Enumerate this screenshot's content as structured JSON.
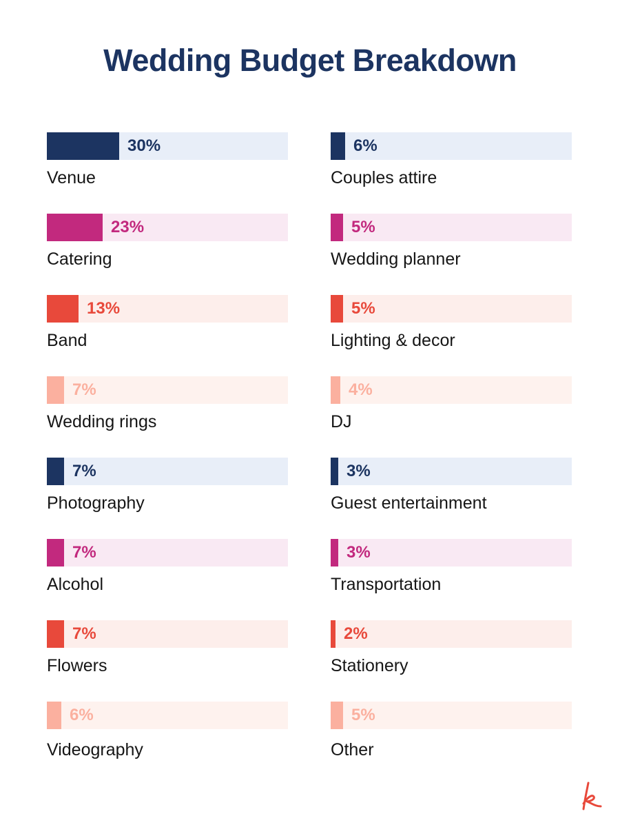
{
  "title": "Wedding Budget Breakdown",
  "colors": {
    "navy": "#1c3461",
    "navy_track": "#e8eef8",
    "magenta": "#c2297e",
    "magenta_track": "#f9e9f3",
    "red": "#e8493b",
    "red_track": "#fdeeeb",
    "peach": "#fbb09f",
    "peach_track": "#fef2ee",
    "logo": "#e8493b"
  },
  "chart_data": {
    "type": "bar",
    "orientation": "horizontal",
    "xlim": [
      0,
      100
    ],
    "unit": "%",
    "categories": [
      "Venue",
      "Catering",
      "Band",
      "Wedding rings",
      "Photography",
      "Alcohol",
      "Flowers",
      "Videography",
      "Couples attire",
      "Wedding planner",
      "Lighting & decor",
      "DJ",
      "Guest entertainment",
      "Transportation",
      "Stationery",
      "Other"
    ],
    "values": [
      30,
      23,
      13,
      7,
      7,
      7,
      7,
      6,
      6,
      5,
      5,
      4,
      3,
      3,
      2,
      5
    ],
    "labels": [
      "30%",
      "23%",
      "13%",
      "7%",
      "7%",
      "7%",
      "7%",
      "6%",
      "6%",
      "5%",
      "5%",
      "4%",
      "3%",
      "3%",
      "2%",
      "5%"
    ],
    "colors": [
      "navy",
      "magenta",
      "red",
      "peach",
      "navy",
      "magenta",
      "red",
      "peach",
      "navy",
      "magenta",
      "red",
      "peach",
      "navy",
      "magenta",
      "red",
      "peach"
    ],
    "layout": "two columns of eight"
  },
  "logo": {
    "icon": "k-letter-logo-icon"
  }
}
